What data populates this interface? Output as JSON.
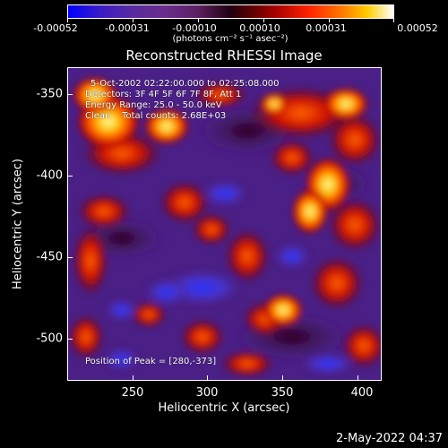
{
  "colorbar": {
    "labels": [
      "-0.00052",
      "-0.00031",
      "-0.00010",
      "0.00010",
      "0.00031",
      "0.00052"
    ],
    "units": "(photons cm⁻² s⁻¹ asec⁻²)"
  },
  "title": "Reconstructed RHESSI Image",
  "info": {
    "time_range": "5-Oct-2002 02:22:00.000 to 02:25:08.000",
    "detectors": "Detectors: 3F 4F 5F 6F 7F 8F, Att 1",
    "energy_range": "Energy Range: 25.0 - 50.0 keV",
    "clean_counts": "Clean    Total counts: 2.68E+03",
    "peak_position": "Position of Peak = [280,-373]"
  },
  "axes": {
    "xlabel": "Heliocentric X (arcsec)",
    "ylabel": "Heliocentric Y (arcsec)",
    "xticks": [
      "250",
      "300",
      "350",
      "400"
    ],
    "yticks": [
      "-350",
      "-400",
      "-450",
      "-500"
    ]
  },
  "footer": {
    "timestamp": "2-May-2022 04:37"
  },
  "colors": {
    "background": "#000000",
    "text": "#ffffff",
    "low": "#0000ff",
    "high": "#ffffff"
  }
}
